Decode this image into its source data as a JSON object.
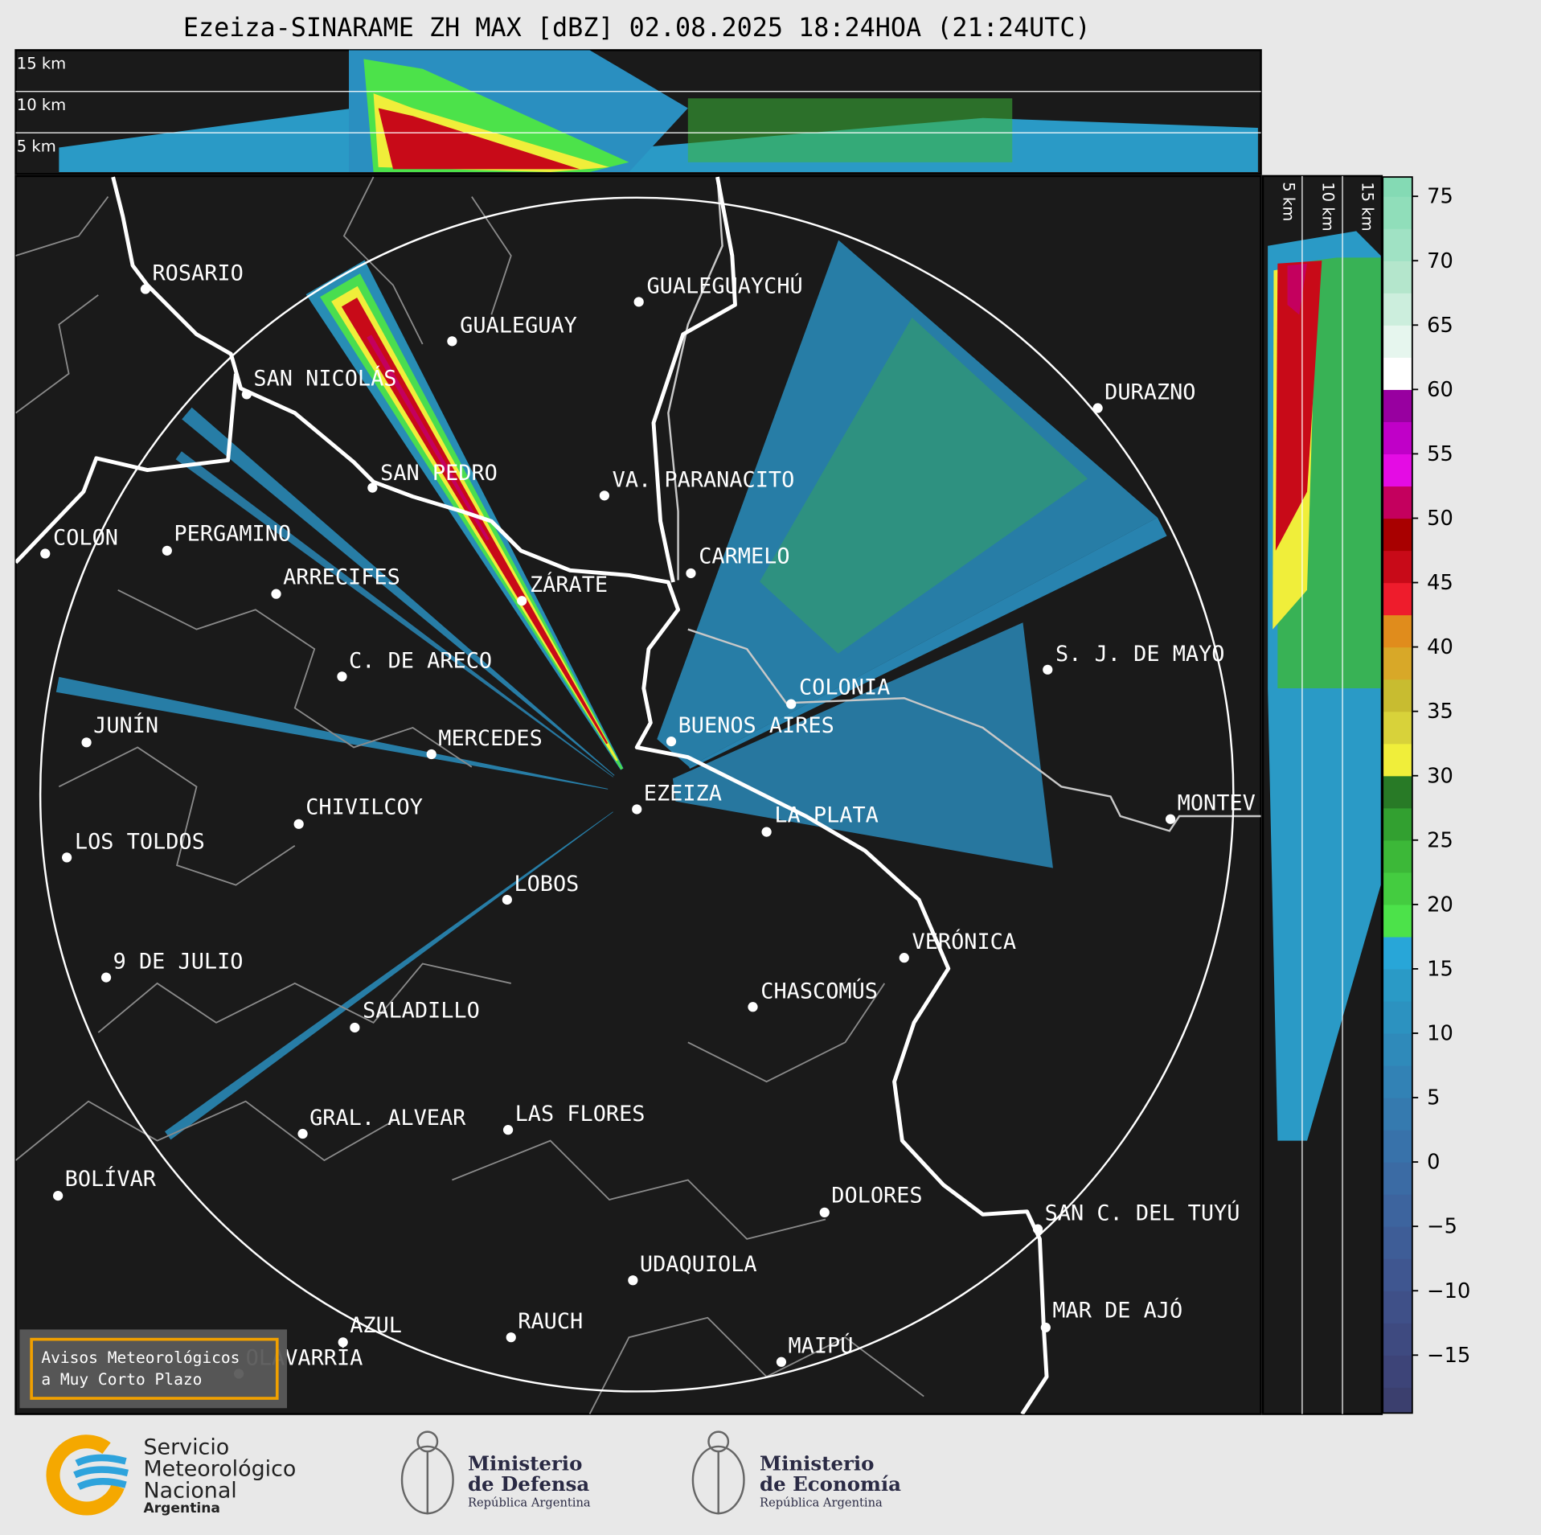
{
  "title": "Ezeiza-SINARAME ZH MAX [dBZ] 02.08.2025 18:24HOA (21:24UTC)",
  "height_panel": {
    "labels": [
      "15 km",
      "10 km",
      "5 km"
    ]
  },
  "side_panel": {
    "labels": [
      "5 km",
      "10 km",
      "15 km"
    ]
  },
  "cities": [
    "ROSARIO",
    "GUALEGUAYCHÚ",
    "GUALEGUAY",
    "SAN NICOLÁS",
    "DURAZNO",
    "SAN PEDRO",
    "VA. PARANACITO",
    "COLON",
    "PERGAMINO",
    "CARMELO",
    "ARRECIFES",
    "ZÁRATE",
    "C. DE ARECO",
    "S. J. DE MAYO",
    "COLONIA",
    "JUNÍN",
    "BUENOS AIRES",
    "MERCEDES",
    "EZEIZA",
    "MONTEV",
    "CHIVILCOY",
    "LA PLATA",
    "LOS TOLDOS",
    "LOBOS",
    "VERÓNICA",
    "9 DE JULIO",
    "CHASCOMÚS",
    "SALADILLO",
    "GRAL. ALVEAR",
    "LAS FLORES",
    "BOLÍVAR",
    "DOLORES",
    "SAN C. DEL TUYÚ",
    "UDAQUIOLA",
    "MAR DE AJÓ",
    "RAUCH",
    "AZUL",
    "OLAVARRÍA",
    "MAIPÚ"
  ],
  "colorbar": {
    "lim": [
      -19.5,
      76.5
    ],
    "ticks": [
      75,
      70,
      65,
      60,
      55,
      50,
      45,
      40,
      35,
      30,
      25,
      20,
      15,
      10,
      5,
      0,
      {
        "value": -5,
        "label": "−5"
      },
      {
        "value": -10,
        "label": "−10"
      },
      {
        "value": -15,
        "label": "−15"
      }
    ],
    "levels": [
      -19.5,
      -17.5,
      -15,
      -12.5,
      -10,
      -7.5,
      -5,
      -2.5,
      0,
      2.5,
      5,
      7.5,
      10,
      12.5,
      15,
      17.5,
      20,
      22.5,
      25,
      27.5,
      30,
      32.5,
      35,
      37.5,
      40,
      42.5,
      45,
      47.5,
      50,
      52.5,
      55,
      57.5,
      60,
      62.5,
      65,
      67.5,
      70,
      72.5,
      75,
      76.5
    ],
    "colors": [
      "#3b3f6e",
      "#3d4478",
      "#3e4a80",
      "#3f5088",
      "#3f5690",
      "#3e5d97",
      "#3d649e",
      "#3b6ba4",
      "#3872aa",
      "#357aaf",
      "#3282b5",
      "#2f8aba",
      "#2c92c0",
      "#2a9ac6",
      "#28a6d8",
      "#4ce24a",
      "#44cc40",
      "#3cb838",
      "#32a030",
      "#287a26",
      "#f0ee3a",
      "#d8d23a",
      "#c8bc30",
      "#d8a828",
      "#e08c1c",
      "#ee1c2c",
      "#c80a18",
      "#a80000",
      "#c4005e",
      "#e40ce4",
      "#c000c8",
      "#9800a0",
      "#ffffff",
      "#e6f6ee",
      "#cceedd",
      "#b4e6cc",
      "#a0e2c4",
      "#90deba",
      "#84dab4"
    ]
  },
  "notice": {
    "lines": [
      "Avisos Meteorológicos",
      "a Muy Corto Plazo"
    ]
  },
  "logos": [
    {
      "lines": [
        "Servicio",
        "Meteorológico",
        "Nacional",
        "Argentina"
      ]
    },
    {
      "lines": [
        "Ministerio",
        "de Defensa",
        "República Argentina"
      ]
    },
    {
      "lines": [
        "Ministerio",
        "de Economía",
        "República Argentina"
      ]
    }
  ]
}
